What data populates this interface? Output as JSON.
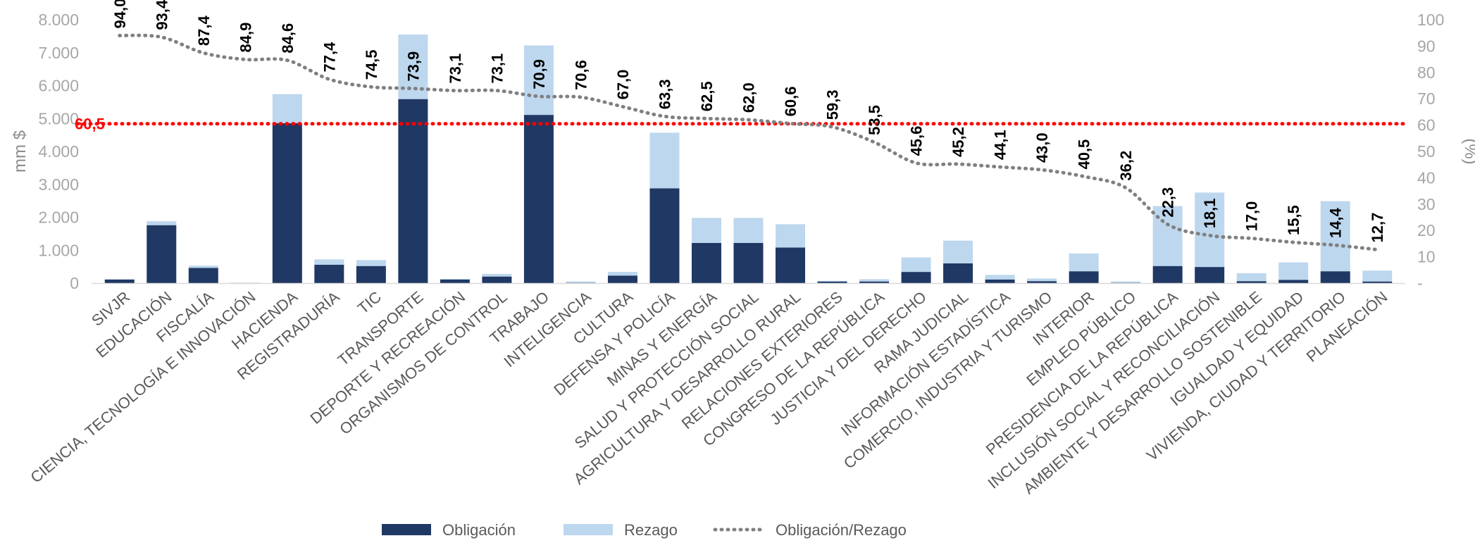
{
  "chart_data": {
    "type": "bar",
    "stacked": true,
    "categories": [
      "SIVJR",
      "EDUCACIÓN",
      "FISCALÍA",
      "CIENCIA, TECNOLOGÍA E INNOVACIÓN",
      "HACIENDA",
      "REGISTRADURÍA",
      "TIC",
      "TRANSPORTE",
      "DEPORTE Y RECREACIÓN",
      "ORGANISMOS DE CONTROL",
      "TRABAJO",
      "INTELIGENCIA",
      "CULTURA",
      "DEFENSA Y POLICÍA",
      "MINAS Y ENERGÍA",
      "SALUD Y PROTECCIÓN SOCIAL",
      "AGRICULTURA Y DESARROLLO RURAL",
      "RELACIONES EXTERIORES",
      "CONGRESO DE LA REPÚBLICA",
      "JUSTICIA Y DEL DERECHO",
      "RAMA JUDICIAL",
      "INFORMACIÓN ESTADÍSTICA",
      "COMERCIO, INDUSTRIA Y TURISMO",
      "INTERIOR",
      "EMPLEO PÚBLICO",
      "PRESIDENCIA DE LA REPÚBLICA",
      "INCLUSIÓN SOCIAL Y RECONCILIACIÓN",
      "AMBIENTE Y DESARROLLO SOSTENIBLE",
      "IGUALDAD Y EQUIDAD",
      "VIVIENDA, CIUDAD Y TERRITORIO",
      "PLANEACIÓN"
    ],
    "series": [
      {
        "name": "Obligación",
        "type": "bar",
        "axis": "left",
        "color": "#203864",
        "values": [
          110,
          1760,
          460,
          5,
          4860,
          560,
          520,
          5590,
          110,
          200,
          5110,
          10,
          230,
          2880,
          1220,
          1220,
          1080,
          50,
          50,
          340,
          600,
          110,
          60,
          360,
          10,
          520,
          490,
          60,
          100,
          360,
          50
        ]
      },
      {
        "name": "Rezago",
        "type": "bar",
        "axis": "left",
        "color": "#bdd7ee",
        "values": [
          10,
          120,
          70,
          0,
          880,
          160,
          180,
          1960,
          20,
          80,
          2110,
          40,
          110,
          1690,
          760,
          760,
          710,
          20,
          70,
          440,
          690,
          140,
          80,
          540,
          40,
          1820,
          2260,
          240,
          530,
          2130,
          330
        ]
      },
      {
        "name": "Obligación/Rezago",
        "type": "line",
        "axis": "right",
        "color": "#808080",
        "style": "dotted",
        "values": [
          94.0,
          93.4,
          87.4,
          84.9,
          84.6,
          77.4,
          74.5,
          73.9,
          73.1,
          73.1,
          70.9,
          70.6,
          67.0,
          63.3,
          62.5,
          62.0,
          60.6,
          59.3,
          53.5,
          45.6,
          45.2,
          44.1,
          43.0,
          40.5,
          36.2,
          22.3,
          18.1,
          17.0,
          15.5,
          14.4,
          12.7
        ],
        "labels": [
          "94,0",
          "93,4",
          "87,4",
          "84,9",
          "84,6",
          "77,4",
          "74,5",
          "73,9",
          "73,1",
          "73,1",
          "70,9",
          "70,6",
          "67,0",
          "63,3",
          "62,5",
          "62,0",
          "60,6",
          "59,3",
          "53,5",
          "45,6",
          "45,2",
          "44,1",
          "43,0",
          "40,5",
          "36,2",
          "22,3",
          "18,1",
          "17,0",
          "15,5",
          "14,4",
          "12,7"
        ]
      }
    ],
    "reference_line": {
      "value": 60.5,
      "label": "60,5",
      "axis": "right",
      "color": "#ff0000",
      "style": "dotted"
    },
    "ylabel": "mm $",
    "y2label": "(%)",
    "ylim": [
      0,
      8000
    ],
    "y2lim": [
      0,
      100
    ],
    "yticks": [
      0,
      1000,
      2000,
      3000,
      4000,
      5000,
      6000,
      7000,
      8000
    ],
    "ytick_labels": [
      "0",
      "1.000",
      "2.000",
      "3.000",
      "4.000",
      "5.000",
      "6.000",
      "7.000",
      "8.000"
    ],
    "y2ticks": [
      0,
      10,
      20,
      30,
      40,
      50,
      60,
      70,
      80,
      90,
      100
    ],
    "y2tick_labels": [
      "-",
      "10",
      "20",
      "30",
      "40",
      "50",
      "60",
      "70",
      "80",
      "90",
      "100"
    ],
    "legend": {
      "position": "bottom",
      "entries": [
        "Obligación",
        "Rezago",
        "Obligación/Rezago"
      ]
    },
    "grid": false
  }
}
